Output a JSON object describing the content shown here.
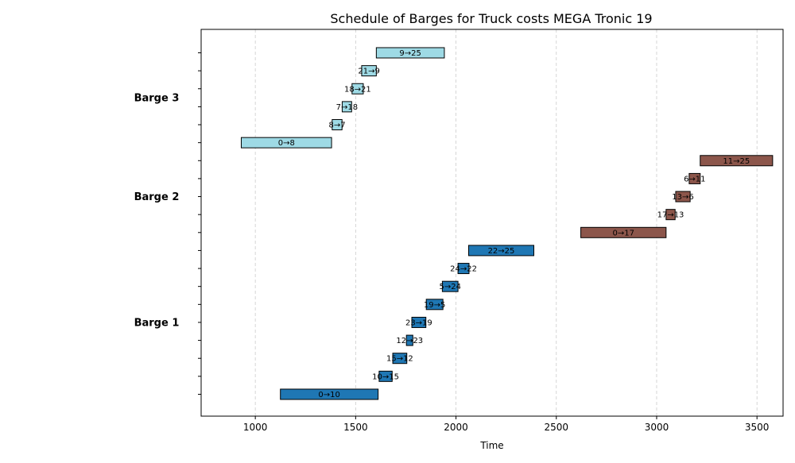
{
  "chart_data": {
    "type": "gantt",
    "title": "Schedule of Barges for Truck costs MEGA Tronic 19",
    "xlabel": "Time",
    "xlim": [
      730,
      3630
    ],
    "xticks": [
      1000,
      1500,
      2000,
      2500,
      3000,
      3500
    ],
    "grid": "x-dashed",
    "barges": [
      {
        "name": "Barge 1",
        "color": "#1f77b4",
        "tasks": [
          {
            "label": "0→10",
            "start": 1125,
            "end": 1612
          },
          {
            "label": "10→15",
            "start": 1617,
            "end": 1682
          },
          {
            "label": "15→12",
            "start": 1685,
            "end": 1755
          },
          {
            "label": "12→23",
            "start": 1753,
            "end": 1785
          },
          {
            "label": "23→19",
            "start": 1780,
            "end": 1850
          },
          {
            "label": "19→5",
            "start": 1852,
            "end": 1935
          },
          {
            "label": "5→24",
            "start": 1932,
            "end": 2010
          },
          {
            "label": "24→22",
            "start": 2010,
            "end": 2065
          },
          {
            "label": "22→25",
            "start": 2063,
            "end": 2388
          }
        ]
      },
      {
        "name": "Barge 2",
        "color": "#8c564b",
        "tasks": [
          {
            "label": "0→17",
            "start": 2622,
            "end": 3047
          },
          {
            "label": "17→13",
            "start": 3047,
            "end": 3092
          },
          {
            "label": "13→6",
            "start": 3095,
            "end": 3167
          },
          {
            "label": "6→11",
            "start": 3162,
            "end": 3217
          },
          {
            "label": "11→25",
            "start": 3217,
            "end": 3578
          }
        ]
      },
      {
        "name": "Barge 3",
        "color": "#9edae5",
        "tasks": [
          {
            "label": "0→8",
            "start": 930,
            "end": 1380
          },
          {
            "label": "8→7",
            "start": 1383,
            "end": 1432
          },
          {
            "label": "7→18",
            "start": 1433,
            "end": 1480
          },
          {
            "label": "18→21",
            "start": 1482,
            "end": 1538
          },
          {
            "label": "21→9",
            "start": 1530,
            "end": 1603
          },
          {
            "label": "9→25",
            "start": 1603,
            "end": 1942
          }
        ]
      }
    ]
  }
}
